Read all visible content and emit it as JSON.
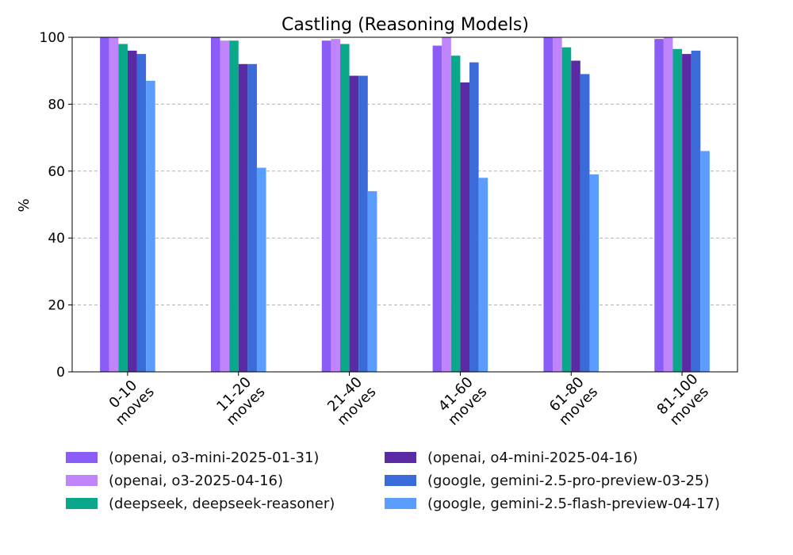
{
  "chart_data": {
    "type": "bar",
    "title": "Castling (Reasoning Models)",
    "xlabel": "",
    "ylabel": "%",
    "ylim": [
      0,
      100
    ],
    "yticks": [
      "0",
      "20",
      "40",
      "60",
      "80",
      "100"
    ],
    "grid": "horizontal dashed",
    "legend_position": "bottom",
    "categories": [
      [
        "0-10",
        "moves"
      ],
      [
        "11-20",
        "moves"
      ],
      [
        "21-40",
        "moves"
      ],
      [
        "41-60",
        "moves"
      ],
      [
        "61-80",
        "moves"
      ],
      [
        "81-100",
        "moves"
      ]
    ],
    "series": [
      {
        "name": "(openai, o3-mini-2025-01-31)",
        "color": "#8b5cf6",
        "values": [
          100,
          100,
          99,
          97.5,
          100,
          99.5
        ]
      },
      {
        "name": "(openai, o3-2025-04-16)",
        "color": "#c084fc",
        "values": [
          100,
          99,
          99.5,
          100,
          100,
          100
        ]
      },
      {
        "name": "(deepseek, deepseek-reasoner)",
        "color": "#0aa88a",
        "values": [
          98,
          99,
          98,
          94.5,
          97,
          96.5
        ]
      },
      {
        "name": "(openai, o4-mini-2025-04-16)",
        "color": "#5b2ba6",
        "values": [
          96,
          92,
          88.5,
          86.5,
          93,
          95
        ]
      },
      {
        "name": "(google, gemini-2.5-pro-preview-03-25)",
        "color": "#3a6bd8",
        "values": [
          95,
          92,
          88.5,
          92.5,
          89,
          96
        ]
      },
      {
        "name": "(google, gemini-2.5-flash-preview-04-17)",
        "color": "#5b9dff",
        "values": [
          87,
          61,
          54,
          58,
          59,
          66
        ]
      }
    ]
  }
}
